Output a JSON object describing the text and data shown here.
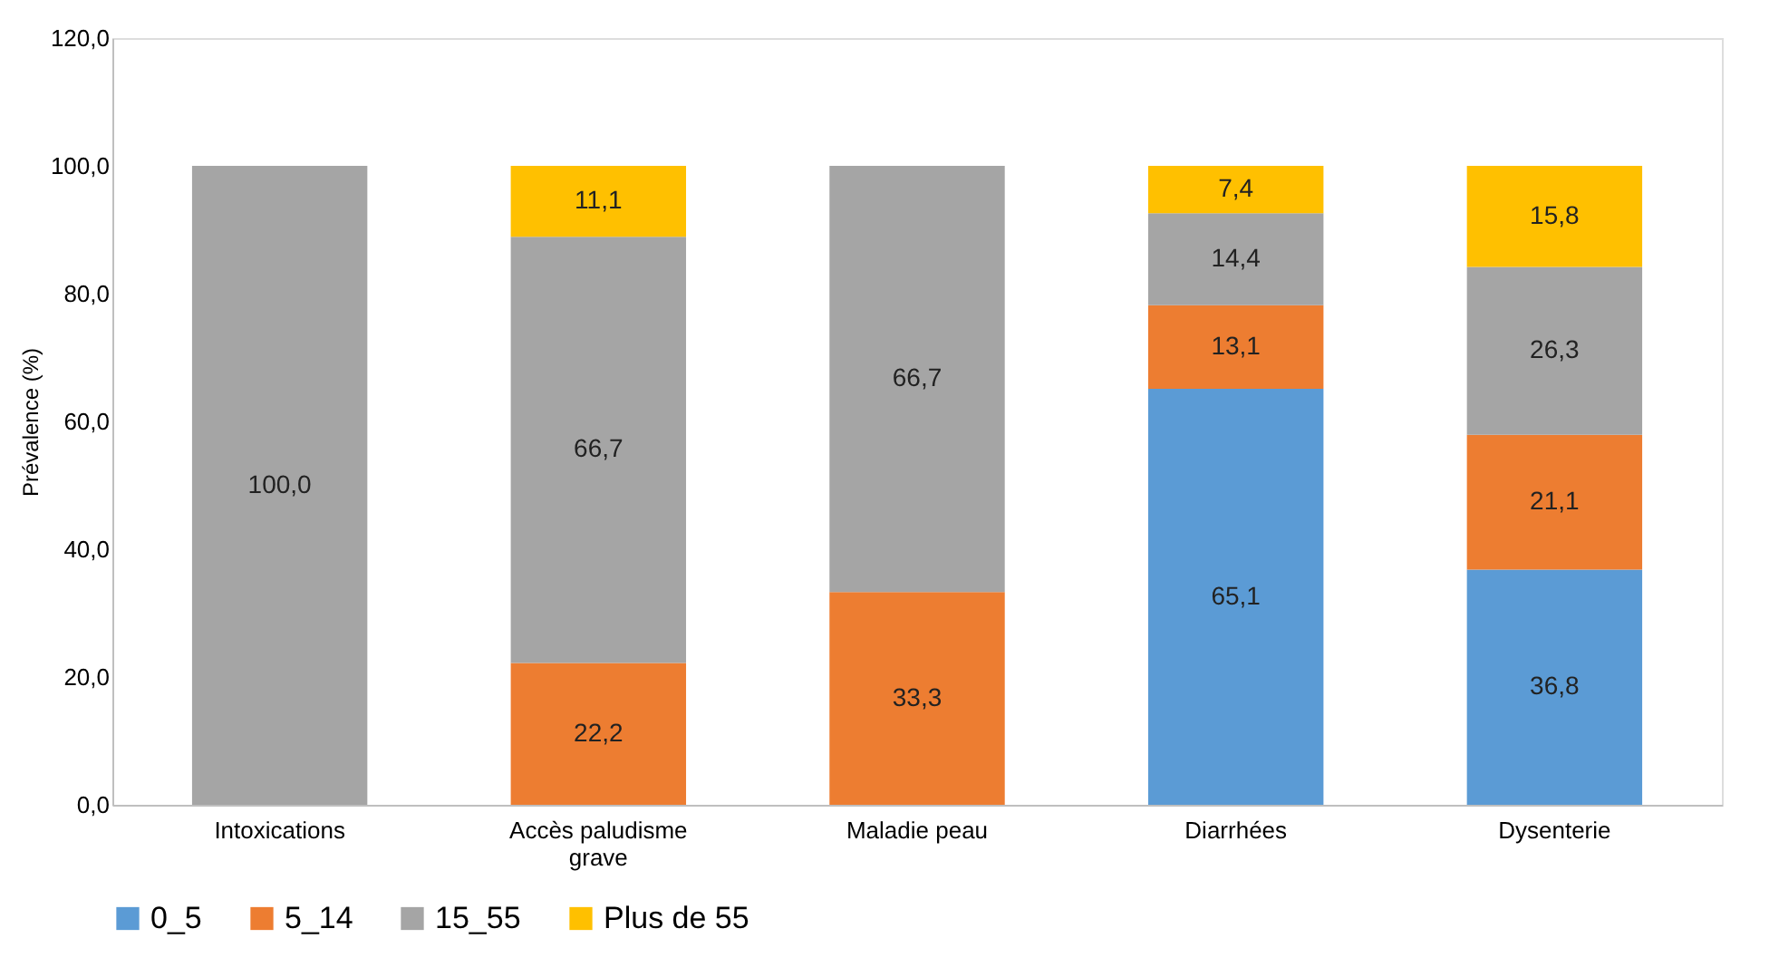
{
  "chart_data": {
    "type": "bar",
    "stacked": true,
    "ylabel": "Prévalence (%)",
    "categories": [
      "Intoxications",
      "Accès paludisme grave",
      "Maladie peau",
      "Diarrhées",
      "Dysenterie"
    ],
    "ylim": [
      0,
      120
    ],
    "yticks": [
      {
        "value": 0,
        "label": "0,0"
      },
      {
        "value": 20,
        "label": "20,0"
      },
      {
        "value": 40,
        "label": "40,0"
      },
      {
        "value": 60,
        "label": "60,0"
      },
      {
        "value": 80,
        "label": "80,0"
      },
      {
        "value": 100,
        "label": "100,0"
      },
      {
        "value": 120,
        "label": "120,0"
      }
    ],
    "grid": false,
    "legend": "bottom",
    "series": [
      {
        "name": "0_5",
        "color": "#5b9bd5",
        "values": [
          null,
          null,
          null,
          65.1,
          36.8
        ],
        "value_labels": [
          null,
          null,
          null,
          "65,1",
          "36,8"
        ]
      },
      {
        "name": "5_14",
        "color": "#ed7d31",
        "values": [
          null,
          22.2,
          33.3,
          13.1,
          21.1
        ],
        "value_labels": [
          null,
          "22,2",
          "33,3",
          "13,1",
          "21,1"
        ]
      },
      {
        "name": "15_55",
        "color": "#a5a5a5",
        "values": [
          100,
          66.7,
          66.7,
          14.4,
          26.3
        ],
        "value_labels": [
          "100,0",
          "66,7",
          "66,7",
          "14,4",
          "26,3"
        ]
      },
      {
        "name": "Plus de 55",
        "color": "#ffc000",
        "values": [
          null,
          11.1,
          null,
          7.4,
          15.8
        ],
        "value_labels": [
          null,
          "11,1",
          null,
          "7,4",
          "15,8"
        ]
      }
    ]
  }
}
